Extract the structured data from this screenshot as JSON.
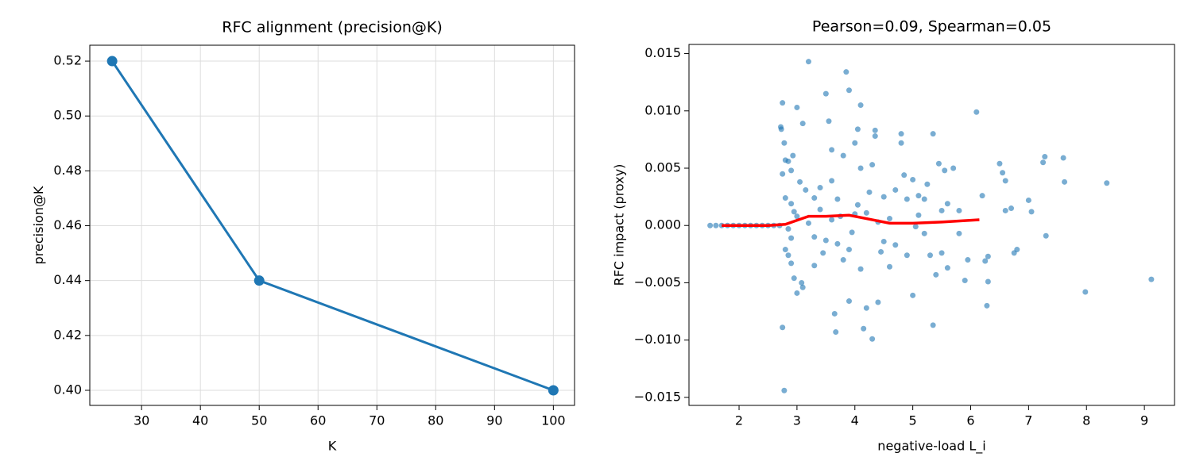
{
  "chart_data": [
    {
      "type": "line",
      "title": "RFC alignment (precision@K)",
      "x_label": "K",
      "y_label": "precision@K",
      "x": [
        25,
        50,
        100
      ],
      "values": [
        0.52,
        0.44,
        0.4
      ],
      "color": "#1f77b4",
      "marker": true,
      "grid": true,
      "xlim": [
        21.2,
        103.6
      ],
      "xticks": [
        30,
        40,
        50,
        60,
        70,
        80,
        90,
        100
      ],
      "ylim": [
        0.3945,
        0.5258
      ],
      "yticks": [
        {
          "value": 0.4,
          "label": "0.40"
        },
        0.42,
        0.44,
        0.46,
        0.48,
        {
          "value": 0.5,
          "label": "0.50"
        },
        0.52
      ]
    },
    {
      "type": "scatter",
      "title": "Pearson=0.09, Spearman=0.05",
      "x_label": "negative-load L_i",
      "y_label": "RFC impact (proxy)",
      "grid": false,
      "xlim": [
        1.135,
        9.52
      ],
      "xticks": [
        2,
        3,
        4,
        5,
        6,
        7,
        8,
        9
      ],
      "ylim": [
        -0.0157,
        0.0158
      ],
      "yticks": [
        {
          "value": -0.015,
          "label": "−0.015"
        },
        {
          "value": -0.01,
          "label": "−0.010"
        },
        {
          "value": -0.005,
          "label": "−0.005"
        },
        {
          "value": 0,
          "label": "0.000"
        },
        0.005,
        {
          "value": 0.01,
          "label": "0.010"
        },
        0.015
      ],
      "series": [
        {
          "style": "points",
          "color": "#1f77b4",
          "x": [
            1.5,
            1.6,
            1.7,
            1.8,
            1.9,
            2.0,
            2.1,
            2.2,
            2.3,
            2.4,
            2.5,
            2.6,
            2.7,
            2.75,
            2.72,
            2.73,
            2.78,
            2.8,
            2.85,
            2.75,
            2.9,
            2.93,
            3.0,
            3.1,
            3.2,
            3.05,
            3.15,
            2.8,
            2.9,
            2.95,
            3.0,
            2.85,
            2.9,
            2.8,
            2.85,
            2.9,
            2.95,
            3.0,
            3.1,
            3.08,
            2.75,
            2.78,
            3.3,
            3.4,
            3.5,
            3.55,
            3.6,
            3.6,
            3.7,
            3.7,
            3.65,
            3.67,
            3.8,
            3.85,
            3.9,
            4.0,
            4.05,
            4.1,
            4.1,
            4.05,
            4.0,
            3.95,
            3.9,
            4.1,
            3.9,
            4.15,
            4.2,
            4.3,
            4.35,
            4.35,
            4.3,
            4.4,
            4.5,
            4.6,
            4.7,
            4.8,
            4.8,
            4.9,
            5.0,
            5.0,
            5.1,
            5.2,
            5.25,
            5.3,
            5.35,
            5.35,
            5.4,
            5.45,
            5.5,
            5.55,
            5.6,
            5.7,
            5.8,
            5.9,
            5.95,
            6.1,
            6.2,
            6.25,
            6.28,
            6.3,
            6.5,
            6.55,
            6.6,
            6.6,
            6.7,
            6.75,
            6.8,
            7.0,
            7.05,
            7.25,
            7.28,
            7.3,
            7.6,
            7.62,
            7.98,
            8.35,
            9.12,
            3.2,
            3.3,
            3.4,
            3.5,
            3.6,
            3.75,
            3.8,
            4.2,
            4.4,
            4.5,
            4.6,
            4.7,
            4.9,
            5.1,
            5.2,
            5.6,
            5.8,
            6.3,
            3.3,
            4.25,
            4.85,
            5.05,
            3.45,
            4.45,
            5.5
          ],
          "values": [
            0,
            0,
            0,
            0,
            0,
            0,
            0,
            0,
            0,
            0,
            0,
            0,
            0,
            0.0107,
            0.0086,
            0.0084,
            0.0072,
            0.0057,
            0.0056,
            0.0045,
            0.0048,
            0.0061,
            0.0103,
            0.0089,
            0.0143,
            0.0038,
            0.0031,
            0.0024,
            0.0019,
            0.0012,
            0.0008,
            -0.0003,
            -0.0011,
            -0.0021,
            -0.0026,
            -0.0033,
            -0.0046,
            -0.0059,
            -0.0054,
            -0.005,
            -0.0089,
            -0.0144,
            -0.0035,
            0.0033,
            0.0115,
            0.0091,
            0.0066,
            0.0039,
            0.0023,
            -0.0016,
            -0.0077,
            -0.0093,
            0.0061,
            0.0134,
            0.0118,
            0.0072,
            0.0084,
            0.0105,
            0.005,
            0.0018,
            0.001,
            -0.0006,
            -0.0021,
            -0.0038,
            -0.0066,
            -0.009,
            -0.0072,
            -0.0099,
            0.0083,
            0.0078,
            0.0053,
            -0.0067,
            0.0025,
            -0.0036,
            0.0031,
            0.008,
            0.0072,
            0.0023,
            0.004,
            -0.0061,
            0.0026,
            0.0023,
            0.0036,
            -0.0026,
            0.008,
            -0.0087,
            -0.0043,
            0.0054,
            0.0013,
            0.0048,
            -0.0037,
            0.005,
            0.0013,
            -0.0048,
            -0.003,
            0.0099,
            0.0026,
            -0.0031,
            -0.007,
            -0.0049,
            0.0054,
            0.0046,
            0.0039,
            0.0013,
            0.0015,
            -0.0024,
            -0.0021,
            0.0022,
            0.0012,
            0.0055,
            0.006,
            -0.0009,
            0.0059,
            0.0038,
            -0.0058,
            0.0037,
            -0.0047,
            0.0002,
            -0.001,
            0.0014,
            -0.0013,
            0.0005,
            0.0008,
            -0.003,
            0.0011,
            0.0003,
            -0.0014,
            0.0006,
            -0.0017,
            -0.0026,
            0.0009,
            -0.0007,
            0.0019,
            -0.0007,
            -0.0027,
            0.0024,
            0.0029,
            0.0044,
            -0.0001,
            -0.0024,
            -0.0023,
            -0.0024
          ]
        },
        {
          "style": "line",
          "color": "#ff0000",
          "x": [
            1.7,
            2.0,
            2.5,
            2.8,
            3.2,
            3.5,
            3.9,
            4.2,
            4.6,
            5.0,
            5.5,
            6.15
          ],
          "values": [
            0,
            0,
            0,
            0.0001,
            0.0008,
            0.0008,
            0.0009,
            0.0006,
            0.0002,
            0.0002,
            0.0003,
            0.0005
          ]
        }
      ]
    }
  ]
}
